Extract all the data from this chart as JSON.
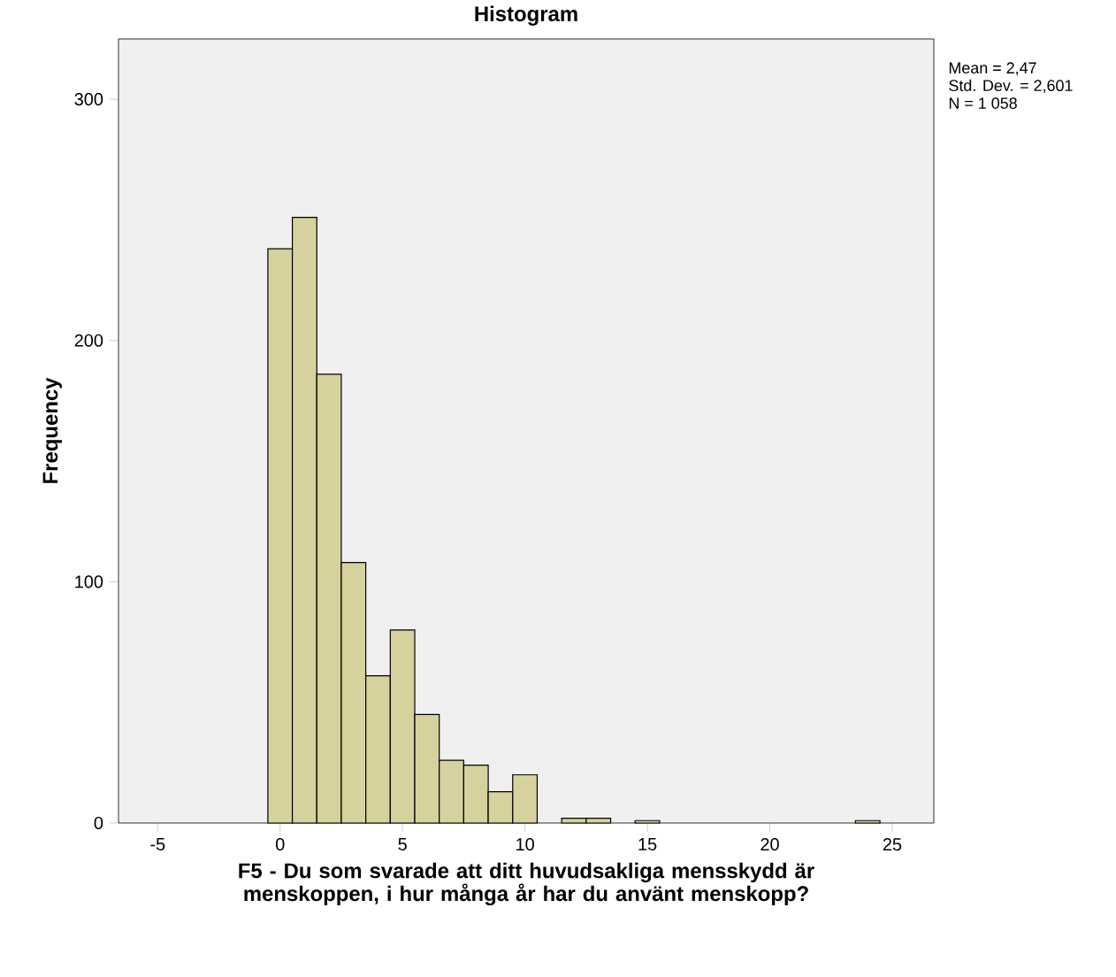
{
  "chart_data": {
    "type": "histogram",
    "title": "Histogram",
    "xlabel": "F5 - Du som svarade att ditt huvudsakliga mensskydd är menskoppen, i hur många år har du använt menskopp?",
    "ylabel": "Frequency",
    "bins": [
      -0.5,
      0.5,
      1.5,
      2.5,
      3.5,
      4.5,
      5.5,
      6.5,
      7.5,
      8.5,
      9.5,
      10.5,
      11.5,
      12.5,
      13.5,
      14.5,
      15.5,
      16.5,
      17.5,
      18.5,
      19.5,
      20.5,
      21.5,
      22.5,
      23.5,
      24.5
    ],
    "values": [
      238,
      251,
      186,
      108,
      61,
      80,
      45,
      26,
      24,
      13,
      20,
      0,
      2,
      2,
      0,
      1,
      0,
      0,
      0,
      0,
      0,
      0,
      0,
      0,
      1
    ],
    "color": "#d6d19d",
    "xlim": [
      -6.6,
      26.7
    ],
    "ylim": [
      0,
      325
    ],
    "xticks": [
      -5,
      0,
      5,
      10,
      15,
      20,
      25
    ],
    "yticks": [
      0,
      100,
      200,
      300
    ],
    "grid": false,
    "annotations": [
      "Mean = 2,47",
      "Std. Dev. = 2,601",
      "N = 1 058"
    ]
  }
}
